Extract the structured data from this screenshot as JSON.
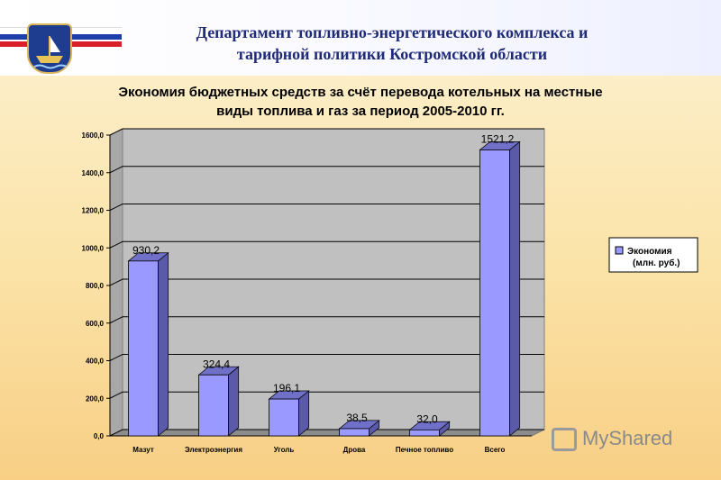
{
  "header": {
    "title_line1": "Департамент  топливно-энергетического комплекса и",
    "title_line2": "тарифной политики Костромской области",
    "emblem_icon": "kostroma-coat-of-arms-icon",
    "flag_colors": [
      "#ffffff",
      "#1f3fa8",
      "#d9202a"
    ]
  },
  "chart_title_line1": "Экономия бюджетных средств  за счёт перевода котельных на местные",
  "chart_title_line2": "виды топлива и газ за период 2005-2010 гг.",
  "chart_data": {
    "type": "bar",
    "style": "3d-column",
    "title": "Экономия бюджетных средств  за счёт перевода котельных на местные виды топлива и газ за период 2005-2010 гг.",
    "categories": [
      "Мазут",
      "Электроэнергия",
      "Уголь",
      "Дрова",
      "Печное топливо",
      "Всего"
    ],
    "series": [
      {
        "name": "Экономия (млн. руб.)",
        "legend_line1": "Экономия",
        "legend_line2": "(млн. руб.)",
        "values": [
          930.2,
          324.4,
          196.1,
          38.5,
          32.0,
          1521.2
        ],
        "data_labels": [
          "930,2",
          "324,4",
          "196,1",
          "38,5",
          "32,0",
          "1521,2"
        ],
        "color": "#9999ff"
      }
    ],
    "ylim": [
      0,
      1600
    ],
    "y_ticks": [
      0,
      200,
      400,
      600,
      800,
      1000,
      1200,
      1400,
      1600
    ],
    "y_tick_labels": [
      "0,0",
      "200,0",
      "400,0",
      "600,0",
      "800,0",
      "1000,0",
      "1200,0",
      "1400,0",
      "1600,0"
    ],
    "grid": true,
    "legend_position": "right",
    "plot_color": "#c0c0c0"
  },
  "watermark": {
    "text": "MyShared",
    "icon": "presentation-board-icon"
  }
}
